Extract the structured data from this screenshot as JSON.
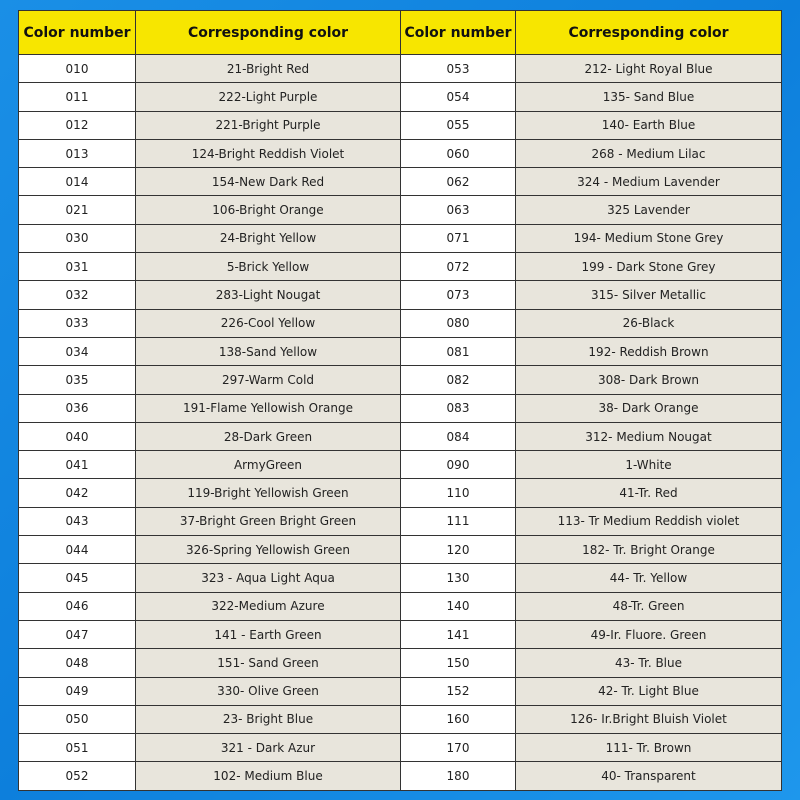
{
  "headers": [
    "Color number",
    "Corresponding color",
    "Color number",
    "Corresponding color"
  ],
  "left": [
    [
      "010",
      "21-Bright Red"
    ],
    [
      "011",
      "222-Light Purple"
    ],
    [
      "012",
      "221-Bright Purple"
    ],
    [
      "013",
      "124-Bright Reddish Violet"
    ],
    [
      "014",
      "154-New Dark Red"
    ],
    [
      "021",
      "106-Bright Orange"
    ],
    [
      "030",
      "24-Bright Yellow"
    ],
    [
      "031",
      "5-Brick Yellow"
    ],
    [
      "032",
      "283-Light Nougat"
    ],
    [
      "033",
      "226-Cool Yellow"
    ],
    [
      "034",
      "138-Sand Yellow"
    ],
    [
      "035",
      "297-Warm Cold"
    ],
    [
      "036",
      "191-Flame Yellowish Orange"
    ],
    [
      "040",
      "28-Dark Green"
    ],
    [
      "041",
      "ArmyGreen"
    ],
    [
      "042",
      "119-Bright Yellowish Green"
    ],
    [
      "043",
      "37-Bright Green Bright Green"
    ],
    [
      "044",
      "326-Spring Yellowish Green"
    ],
    [
      "045",
      "323 - Aqua Light Aqua"
    ],
    [
      "046",
      "322-Medium Azure"
    ],
    [
      "047",
      "141 - Earth Green"
    ],
    [
      "048",
      "151- Sand Green"
    ],
    [
      "049",
      "330- Olive Green"
    ],
    [
      "050",
      "23- Bright Blue"
    ],
    [
      "051",
      "321 - Dark Azur"
    ],
    [
      "052",
      "102- Medium Blue"
    ]
  ],
  "right": [
    [
      "053",
      "212- Light Royal Blue"
    ],
    [
      "054",
      "135- Sand Blue"
    ],
    [
      "055",
      "140- Earth Blue"
    ],
    [
      "060",
      "268 - Medium Lilac"
    ],
    [
      "062",
      "324 - Medium Lavender"
    ],
    [
      "063",
      "325 Lavender"
    ],
    [
      "071",
      "194- Medium Stone Grey"
    ],
    [
      "072",
      "199 - Dark Stone Grey"
    ],
    [
      "073",
      "315- Silver Metallic"
    ],
    [
      "080",
      "26-Black"
    ],
    [
      "081",
      "192- Reddish Brown"
    ],
    [
      "082",
      "308- Dark Brown"
    ],
    [
      "083",
      "38- Dark Orange"
    ],
    [
      "084",
      "312- Medium Nougat"
    ],
    [
      "090",
      "1-White"
    ],
    [
      "110",
      "41-Tr. Red"
    ],
    [
      "111",
      "113- Tr Medium Reddish violet"
    ],
    [
      "120",
      "182- Tr. Bright Orange"
    ],
    [
      "130",
      "44- Tr. Yellow"
    ],
    [
      "140",
      "48-Tr. Green"
    ],
    [
      "141",
      "49-Ir. Fluore. Green"
    ],
    [
      "150",
      "43- Tr. Blue"
    ],
    [
      "152",
      "42- Tr. Light Blue"
    ],
    [
      "160",
      "126- Ir.Bright Bluish Violet"
    ],
    [
      "170",
      "111- Tr. Brown"
    ],
    [
      "180",
      "40- Transparent"
    ]
  ]
}
